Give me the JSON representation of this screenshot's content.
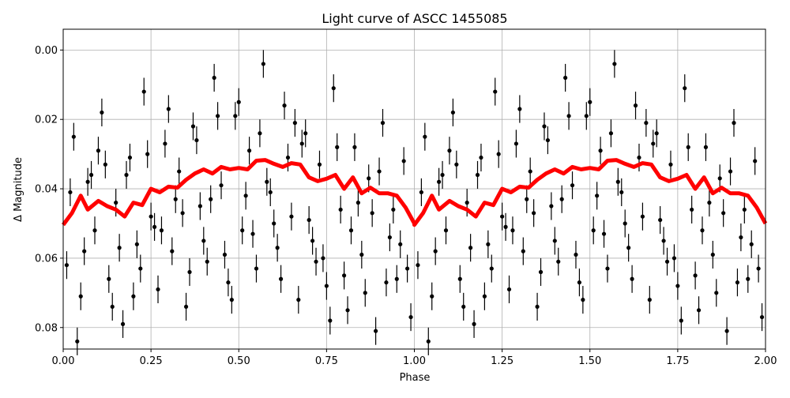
{
  "chart_data": {
    "type": "scatter",
    "title": "Light curve of ASCC 1455085",
    "xlabel": "Phase",
    "ylabel": "Δ Magnitude",
    "xlim": [
      0,
      2
    ],
    "ylim": [
      -0.006,
      0.0862
    ],
    "y_inverted": true,
    "grid": true,
    "x_ticks": [
      "0.00",
      "0.25",
      "0.50",
      "0.75",
      "1.00",
      "1.25",
      "1.50",
      "1.75",
      "2.00"
    ],
    "x_tick_values": [
      0,
      0.25,
      0.5,
      0.75,
      1,
      1.25,
      1.5,
      1.75,
      2
    ],
    "y_ticks": [
      "0.00",
      "0.02",
      "0.04",
      "0.06",
      "0.08"
    ],
    "y_tick_values": [
      0,
      0.02,
      0.04,
      0.06,
      0.08
    ],
    "points_color": "#000000",
    "curve_color": "#ff0000",
    "points_sample": {
      "phase": [
        0.01,
        0.03,
        0.05,
        0.07,
        0.09,
        0.11,
        0.13,
        0.15,
        0.17,
        0.19,
        0.21,
        0.23,
        0.25,
        0.27,
        0.29,
        0.31,
        0.33,
        0.35,
        0.37,
        0.39,
        0.41,
        0.43,
        0.45,
        0.47,
        0.49,
        0.51,
        0.53,
        0.55,
        0.57,
        0.59,
        0.61,
        0.63,
        0.65,
        0.67,
        0.69,
        0.71,
        0.73,
        0.75,
        0.77,
        0.79,
        0.81,
        0.83,
        0.85,
        0.87,
        0.89,
        0.91,
        0.93,
        0.95,
        0.97,
        0.99,
        0.02,
        0.06,
        0.1,
        0.14,
        0.18,
        0.22,
        0.26,
        0.3,
        0.34,
        0.38,
        0.42,
        0.46,
        0.5,
        0.54,
        0.58,
        0.62,
        0.66,
        0.7,
        0.74,
        0.78,
        0.82,
        0.86,
        0.9,
        0.94,
        0.98,
        0.04,
        0.12,
        0.2,
        0.28,
        0.36,
        0.44,
        0.52,
        0.6,
        0.68,
        0.76,
        0.84,
        0.92,
        0.08,
        0.24,
        0.4,
        0.56,
        0.72,
        0.88,
        0.16,
        0.32,
        0.48,
        0.64,
        0.8,
        0.96
      ],
      "mag": [
        0.062,
        0.025,
        0.071,
        0.038,
        0.052,
        0.018,
        0.066,
        0.044,
        0.079,
        0.031,
        0.056,
        0.012,
        0.048,
        0.069,
        0.027,
        0.058,
        0.035,
        0.074,
        0.022,
        0.045,
        0.061,
        0.008,
        0.039,
        0.067,
        0.019,
        0.052,
        0.029,
        0.063,
        0.004,
        0.041,
        0.057,
        0.016,
        0.048,
        0.072,
        0.024,
        0.055,
        0.033,
        0.068,
        0.011,
        0.046,
        0.075,
        0.028,
        0.059,
        0.037,
        0.081,
        0.021,
        0.054,
        0.066,
        0.032,
        0.077,
        0.041,
        0.058,
        0.029,
        0.074,
        0.036,
        0.063,
        0.051,
        0.017,
        0.047,
        0.026,
        0.043,
        0.059,
        0.015,
        0.053,
        0.038,
        0.066,
        0.021,
        0.049,
        0.06,
        0.028,
        0.052,
        0.07,
        0.035,
        0.046,
        0.063,
        0.084,
        0.033,
        0.071,
        0.052,
        0.064,
        0.019,
        0.042,
        0.05,
        0.027,
        0.078,
        0.044,
        0.067,
        0.036,
        0.03,
        0.055,
        0.024,
        0.061,
        0.047,
        0.057,
        0.043,
        0.072,
        0.031,
        0.065,
        0.056
      ],
      "err": 0.004
    },
    "curve": {
      "phase": [
        0,
        0.025,
        0.05,
        0.07,
        0.1,
        0.125,
        0.15,
        0.175,
        0.2,
        0.225,
        0.25,
        0.275,
        0.3,
        0.325,
        0.35,
        0.375,
        0.4,
        0.425,
        0.45,
        0.475,
        0.5,
        0.525,
        0.55,
        0.575,
        0.6,
        0.625,
        0.65,
        0.675,
        0.7,
        0.725,
        0.75,
        0.775,
        0.8,
        0.825,
        0.85,
        0.875,
        0.9,
        0.925,
        0.95,
        0.975,
        1.0
      ],
      "mag": [
        0.0504,
        0.047,
        0.042,
        0.046,
        0.0435,
        0.045,
        0.046,
        0.048,
        0.044,
        0.0447,
        0.04,
        0.041,
        0.0394,
        0.0397,
        0.0374,
        0.0356,
        0.0344,
        0.0356,
        0.0337,
        0.0344,
        0.034,
        0.0344,
        0.0319,
        0.0317,
        0.0328,
        0.0337,
        0.0326,
        0.033,
        0.0367,
        0.0378,
        0.0371,
        0.036,
        0.04,
        0.0367,
        0.0413,
        0.0397,
        0.0413,
        0.0413,
        0.042,
        0.0454,
        0.05
      ],
      "repeats_every_phase": 1
    }
  }
}
